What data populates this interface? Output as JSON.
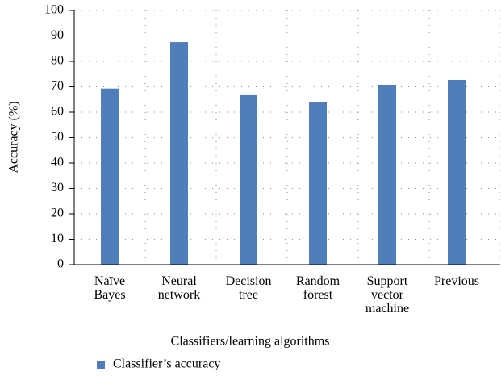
{
  "chart_data": {
    "type": "bar",
    "categories": [
      "Naïve Bayes",
      "Neural network",
      "Decision tree",
      "Random forest",
      "Support vector machine",
      "Previous"
    ],
    "series": [
      {
        "name": "Classifier’s accuracy",
        "color": "#4f7ebb",
        "values": [
          69.3,
          87.6,
          66.7,
          64.1,
          70.8,
          72.7
        ]
      }
    ],
    "x_label": "Classifiers/learning algorithms",
    "y_label": "Accuracy (%)",
    "ylim": [
      0,
      100
    ],
    "yticks": [
      0,
      10,
      20,
      30,
      40,
      50,
      60,
      70,
      80,
      90,
      100
    ],
    "grid": true,
    "legend": "bottom"
  }
}
